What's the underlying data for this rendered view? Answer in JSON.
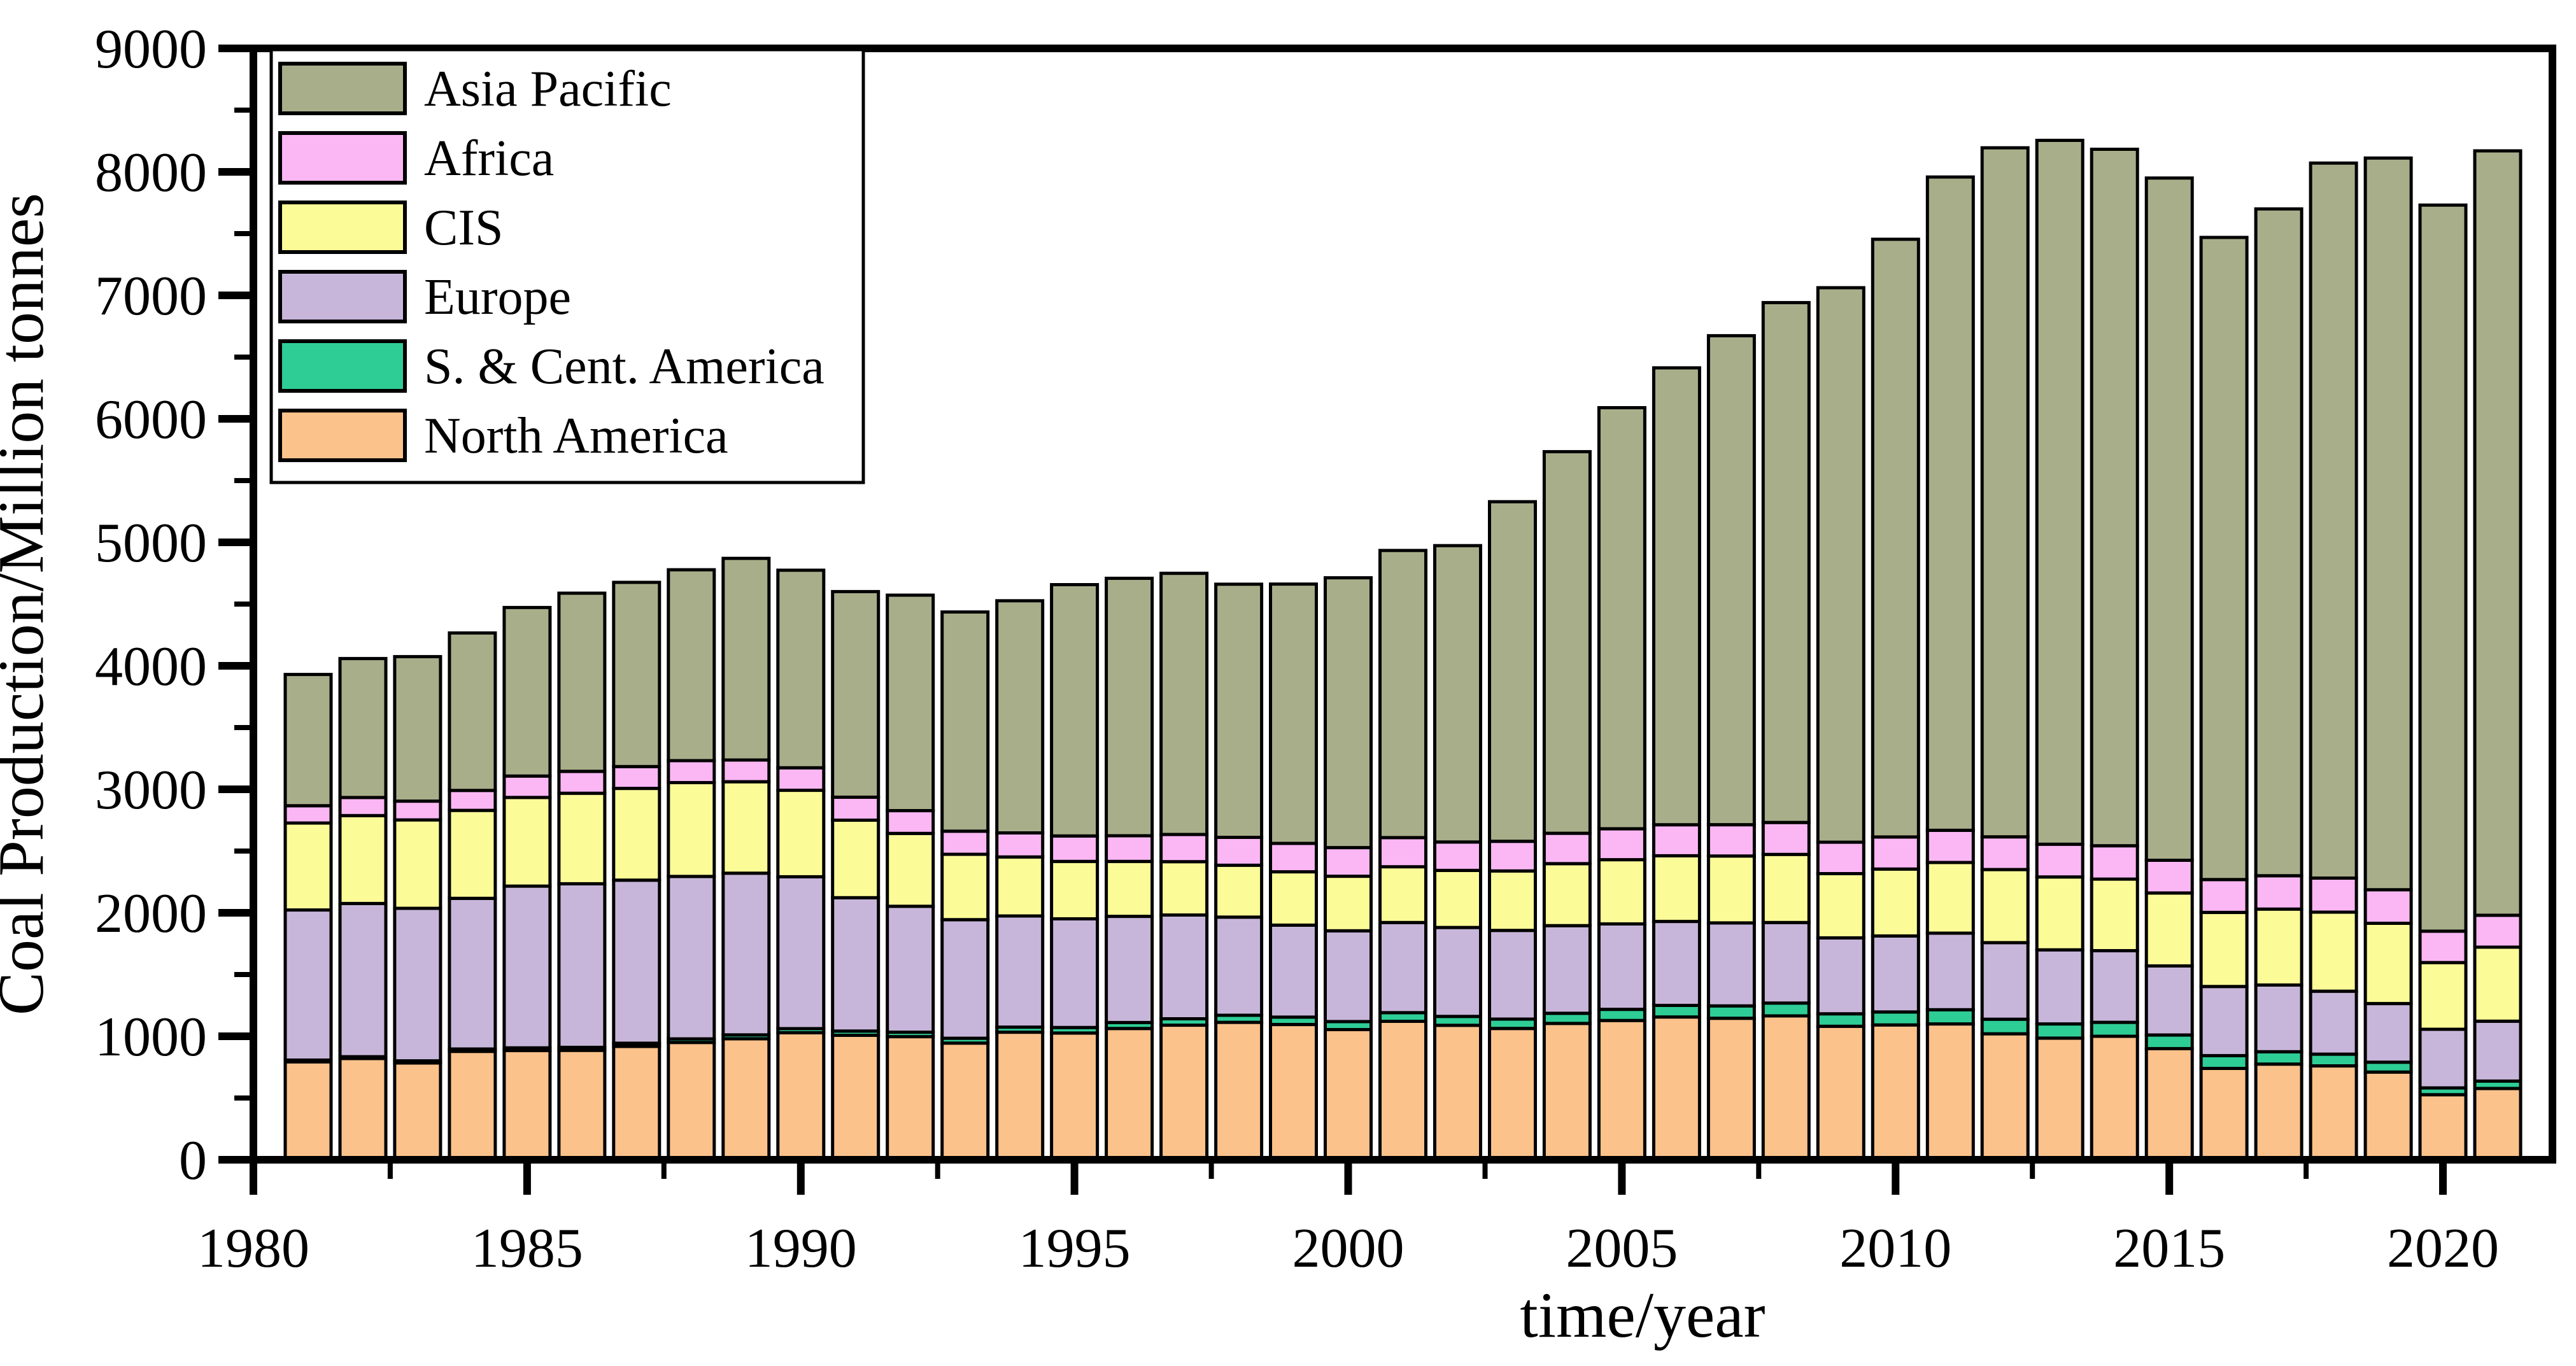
{
  "figure": {
    "background": "#FFFFFF",
    "axis_color": "#000000",
    "bar_outline_color": "#000000"
  },
  "y_axis": {
    "label": "Coal Production/Million tonnes",
    "min": 0,
    "max": 9000,
    "major_step": 1000,
    "minor_step": 500,
    "tick_labels": [
      "0",
      "1000",
      "2000",
      "3000",
      "4000",
      "5000",
      "6000",
      "7000",
      "8000",
      "9000"
    ]
  },
  "x_axis": {
    "label": "time/year",
    "min": 1980,
    "max": 2022,
    "major_step": 5,
    "minor_step": 2.5,
    "tick_labels": [
      "1980",
      "1985",
      "1990",
      "1995",
      "2000",
      "2005",
      "2010",
      "2015",
      "2020"
    ]
  },
  "legend": {
    "entries": [
      {
        "label": "Asia Pacific",
        "color": "#A9AE8A"
      },
      {
        "label": "Africa",
        "color": "#FBB7F4"
      },
      {
        "label": "CIS",
        "color": "#FBFB98"
      },
      {
        "label": "Europe",
        "color": "#C8B6DA"
      },
      {
        "label": "S. & Cent. America",
        "color": "#2ECD96"
      },
      {
        "label": "North America",
        "color": "#FBC28B"
      }
    ]
  },
  "chart_data": {
    "type": "bar",
    "stacked": true,
    "title": "",
    "xlabel": "time/year",
    "ylabel": "Coal Production/Million tonnes",
    "ylim": [
      0,
      9000
    ],
    "xlim": [
      1980,
      2022
    ],
    "grid": false,
    "legend_position": "upper-left",
    "units": "Million tonnes",
    "x": [
      1981,
      1982,
      1983,
      1984,
      1985,
      1986,
      1987,
      1988,
      1989,
      1990,
      1991,
      1992,
      1993,
      1994,
      1995,
      1996,
      1997,
      1998,
      1999,
      2000,
      2001,
      2002,
      2003,
      2004,
      2005,
      2006,
      2007,
      2008,
      2009,
      2010,
      2011,
      2012,
      2013,
      2014,
      2015,
      2016,
      2017,
      2018,
      2019,
      2020,
      2021
    ],
    "series": [
      {
        "name": "North America",
        "color": "#FBC28B",
        "values": [
          793,
          820,
          784,
          878,
          884,
          886,
          918,
          950,
          980,
          1029,
          1008,
          997,
          945,
          1033,
          1026,
          1063,
          1090,
          1113,
          1095,
          1054,
          1121,
          1089,
          1063,
          1104,
          1128,
          1156,
          1146,
          1165,
          1081,
          1092,
          1100,
          1020,
          985,
          1000,
          900,
          740,
          775,
          760,
          710,
          527,
          577
        ]
      },
      {
        "name": "S. & Cent. America",
        "color": "#2ECD96",
        "values": [
          14,
          15,
          17,
          19,
          22,
          24,
          26,
          29,
          31,
          33,
          34,
          36,
          39,
          41,
          45,
          48,
          52,
          57,
          60,
          65,
          70,
          72,
          76,
          82,
          90,
          94,
          100,
          104,
          101,
          105,
          115,
          118,
          115,
          113,
          110,
          103,
          100,
          95,
          80,
          55,
          60
        ]
      },
      {
        "name": "Europe",
        "color": "#C8B6DA",
        "values": [
          1216,
          1240,
          1235,
          1220,
          1310,
          1325,
          1320,
          1315,
          1310,
          1230,
          1080,
          1020,
          960,
          900,
          880,
          860,
          840,
          795,
          745,
          735,
          730,
          720,
          718,
          710,
          692,
          680,
          672,
          652,
          615,
          615,
          620,
          620,
          600,
          580,
          560,
          560,
          540,
          510,
          475,
          475,
          485
        ]
      },
      {
        "name": "CIS",
        "color": "#FBFB98",
        "values": [
          704,
          712,
          716,
          712,
          718,
          733,
          743,
          760,
          740,
          700,
          628,
          590,
          530,
          478,
          465,
          445,
          432,
          420,
          432,
          442,
          452,
          462,
          482,
          502,
          520,
          532,
          542,
          552,
          520,
          542,
          572,
          592,
          590,
          580,
          590,
          600,
          615,
          640,
          650,
          540,
          600
        ]
      },
      {
        "name": "Africa",
        "color": "#FBB7F4",
        "values": [
          140,
          147,
          152,
          162,
          173,
          177,
          177,
          178,
          176,
          182,
          186,
          184,
          187,
          195,
          206,
          208,
          220,
          226,
          230,
          232,
          236,
          230,
          240,
          246,
          250,
          251,
          253,
          258,
          255,
          260,
          261,
          265,
          265,
          270,
          265,
          266,
          270,
          276,
          272,
          254,
          258
        ]
      },
      {
        "name": "Asia Pacific",
        "color": "#A9AE8A",
        "values": [
          1063,
          1125,
          1170,
          1275,
          1365,
          1443,
          1492,
          1546,
          1633,
          1600,
          1665,
          1745,
          1775,
          1880,
          2035,
          2085,
          2115,
          2050,
          2100,
          2185,
          2325,
          2400,
          2750,
          3090,
          3410,
          3700,
          3960,
          4210,
          4490,
          4840,
          5290,
          5580,
          5700,
          5640,
          5525,
          5200,
          5400,
          5790,
          5925,
          5880,
          6190
        ]
      }
    ]
  }
}
